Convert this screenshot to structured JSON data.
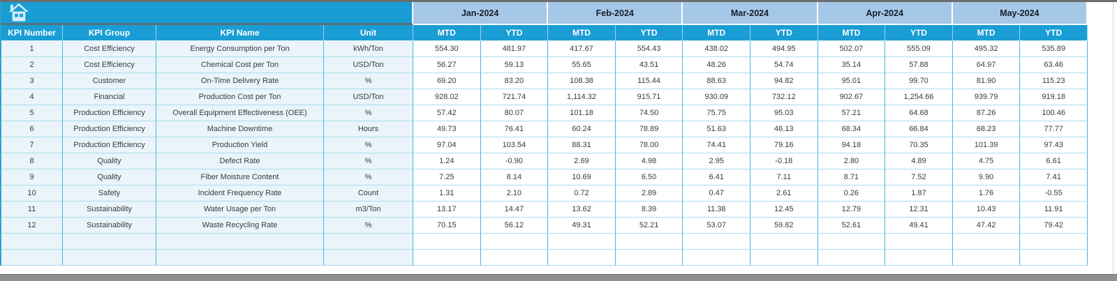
{
  "home": {
    "icon": "home-icon"
  },
  "table": {
    "left_headers": [
      "KPI Number",
      "KPI Group",
      "KPI Name",
      "Unit"
    ],
    "months": [
      "Jan-2024",
      "Feb-2024",
      "Mar-2024",
      "Apr-2024",
      "May-2024"
    ],
    "sub_headers": [
      "MTD",
      "YTD"
    ],
    "rows": [
      {
        "num": "1",
        "group": "Cost Efficiency",
        "name": "Energy Consumption per Ton",
        "unit": "kWh/Ton",
        "values": [
          "554.30",
          "481.97",
          "417.67",
          "554.43",
          "438.02",
          "494.95",
          "502.07",
          "555.09",
          "495.32",
          "535.89"
        ]
      },
      {
        "num": "2",
        "group": "Cost Efficiency",
        "name": "Chemical Cost per Ton",
        "unit": "USD/Ton",
        "values": [
          "56.27",
          "59.13",
          "55.65",
          "43.51",
          "48.26",
          "54.74",
          "35.14",
          "57.88",
          "64.97",
          "63.46"
        ]
      },
      {
        "num": "3",
        "group": "Customer",
        "name": "On-Time Delivery Rate",
        "unit": "%",
        "values": [
          "69.20",
          "83.20",
          "108.38",
          "115.44",
          "88.63",
          "94.82",
          "95.01",
          "99.70",
          "81.90",
          "115.23"
        ]
      },
      {
        "num": "4",
        "group": "Financial",
        "name": "Production Cost per Ton",
        "unit": "USD/Ton",
        "values": [
          "928.02",
          "721.74",
          "1,114.32",
          "915.71",
          "930.09",
          "732.12",
          "902.67",
          "1,254.66",
          "939.79",
          "919.18"
        ]
      },
      {
        "num": "5",
        "group": "Production Efficiency",
        "name": "Overall Equipment Effectiveness (OEE)",
        "unit": "%",
        "values": [
          "57.42",
          "80.07",
          "101.18",
          "74.50",
          "75.75",
          "95.03",
          "57.21",
          "64.68",
          "87.26",
          "100.46"
        ]
      },
      {
        "num": "6",
        "group": "Production Efficiency",
        "name": "Machine Downtime",
        "unit": "Hours",
        "values": [
          "49.73",
          "76.41",
          "60.24",
          "78.89",
          "51.63",
          "46.13",
          "68.34",
          "66.84",
          "68.23",
          "77.77"
        ]
      },
      {
        "num": "7",
        "group": "Production Efficiency",
        "name": "Production Yield",
        "unit": "%",
        "values": [
          "97.04",
          "103.54",
          "88.31",
          "78.00",
          "74.41",
          "79.16",
          "94.18",
          "70.35",
          "101.39",
          "97.43"
        ]
      },
      {
        "num": "8",
        "group": "Quality",
        "name": "Defect Rate",
        "unit": "%",
        "values": [
          "1.24",
          "-0.90",
          "2.69",
          "4.98",
          "2.95",
          "-0.18",
          "2.80",
          "4.89",
          "4.75",
          "6.61"
        ]
      },
      {
        "num": "9",
        "group": "Quality",
        "name": "Fiber Moisture Content",
        "unit": "%",
        "values": [
          "7.25",
          "8.14",
          "10.69",
          "6.50",
          "6.41",
          "7.11",
          "8.71",
          "7.52",
          "9.90",
          "7.41"
        ]
      },
      {
        "num": "10",
        "group": "Safety",
        "name": "Incident Frequency Rate",
        "unit": "Count",
        "values": [
          "1.31",
          "2.10",
          "0.72",
          "2.89",
          "0.47",
          "2.61",
          "0.26",
          "1.87",
          "1.76",
          "-0.55"
        ]
      },
      {
        "num": "11",
        "group": "Sustainability",
        "name": "Water Usage per Ton",
        "unit": "m3/Ton",
        "values": [
          "13.17",
          "14.47",
          "13.62",
          "8.39",
          "11.38",
          "12.45",
          "12.79",
          "12.31",
          "10.43",
          "11.91"
        ]
      },
      {
        "num": "12",
        "group": "Sustainability",
        "name": "Waste Recycling Rate",
        "unit": "%",
        "values": [
          "70.15",
          "56.12",
          "49.31",
          "52.21",
          "53.07",
          "59.82",
          "52.61",
          "49.41",
          "47.42",
          "79.42"
        ]
      }
    ],
    "empty_row_count": 2
  },
  "colors": {
    "header_cyan": "#199dd4",
    "month_header_blue": "#a6c8e8",
    "left_cell_bg": "#eaf4fa",
    "grid_vertical": "#49b4dc",
    "grid_horizontal": "#abdced",
    "dark_divider": "#5a7078",
    "scrollbar_gray": "#909090"
  }
}
